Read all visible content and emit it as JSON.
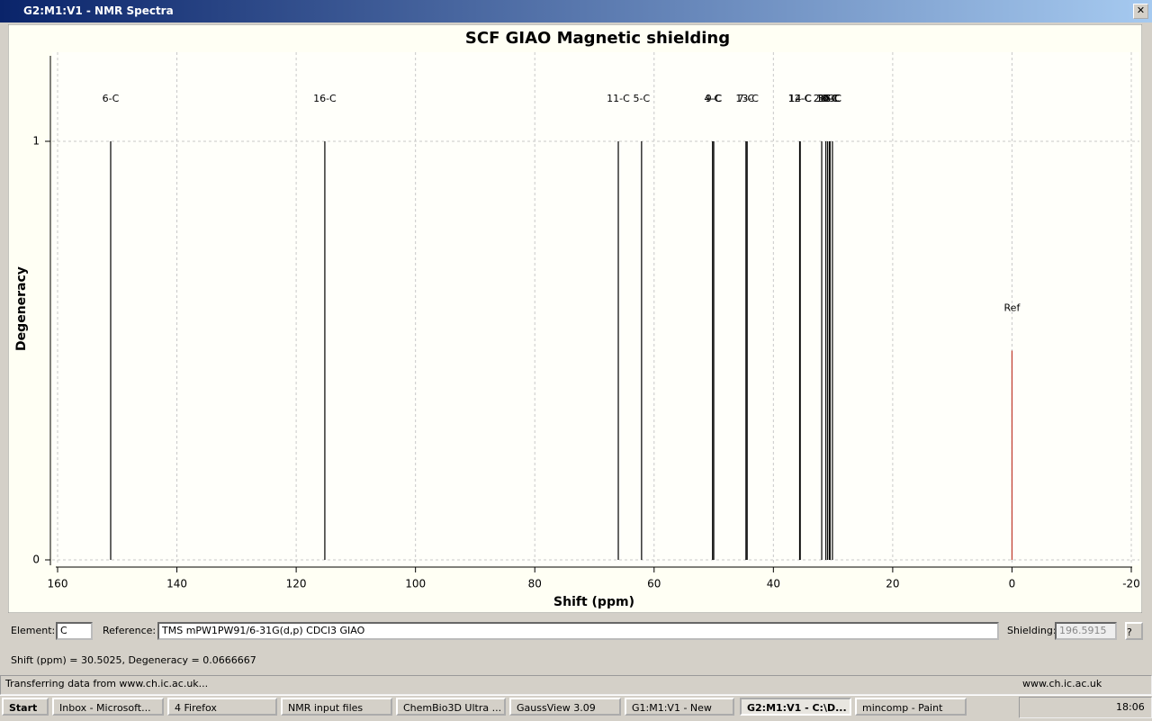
{
  "window": {
    "title": "G2:M1:V1 - NMR Spectra"
  },
  "chart_data": {
    "type": "stem",
    "title": "SCF GIAO Magnetic shielding",
    "x_label": "Shift (ppm)",
    "y_label": "Degeneracy",
    "peaks": {
      "color": "#000000",
      "x": [
        151.1,
        115.2,
        66.0,
        62.1,
        50.2,
        50.0,
        44.6,
        44.4,
        35.6,
        35.5,
        31.9,
        31.2,
        30.9,
        30.6,
        30.5,
        30.1
      ],
      "values": [
        1,
        1,
        1,
        1,
        1,
        1,
        1,
        1,
        1,
        1,
        1,
        1,
        1,
        1,
        1,
        1
      ],
      "labels": [
        "6-C",
        "16-C",
        "11-C",
        "5-C",
        "4-C",
        "9-C",
        "7-C",
        "13-C",
        "12-C",
        "14-C",
        "2-C",
        "3-C",
        "10-C",
        "8-C",
        "15-C",
        "1-C"
      ]
    },
    "reference": {
      "label": "Ref",
      "x": 0,
      "value": 0.5,
      "color": "#c0392b"
    },
    "xlim": [
      160,
      -20
    ],
    "xticks": [
      160,
      140,
      120,
      100,
      80,
      60,
      40,
      20,
      0,
      -20
    ],
    "ylim": [
      0,
      1.2
    ],
    "yticks": [
      0,
      1
    ],
    "grid": true
  },
  "controls": {
    "element_label": "Element:",
    "element": "C",
    "reference_label": "Reference:",
    "reference": "TMS mPW1PW91/6-31G(d,p) CDCl3 GIAO",
    "shielding_label": "Shielding:",
    "shielding": "196.5915"
  },
  "readout": "Shift (ppm) = 30.5025,  Degeneracy = 0.0666667",
  "status_bar": {
    "message": "Transferring data from www.ch.ic.ac.uk...",
    "zone": "www.ch.ic.ac.uk"
  },
  "taskbar": {
    "start": "Start",
    "items": [
      "Inbox - Microsoft...",
      "4 Firefox",
      "NMR input files",
      "ChemBio3D Ultra ...",
      "GaussView 3.09",
      "G1:M1:V1 - New",
      "G2:M1:V1 - C:\\D...",
      "mincomp - Paint"
    ],
    "clock": "18:06"
  }
}
